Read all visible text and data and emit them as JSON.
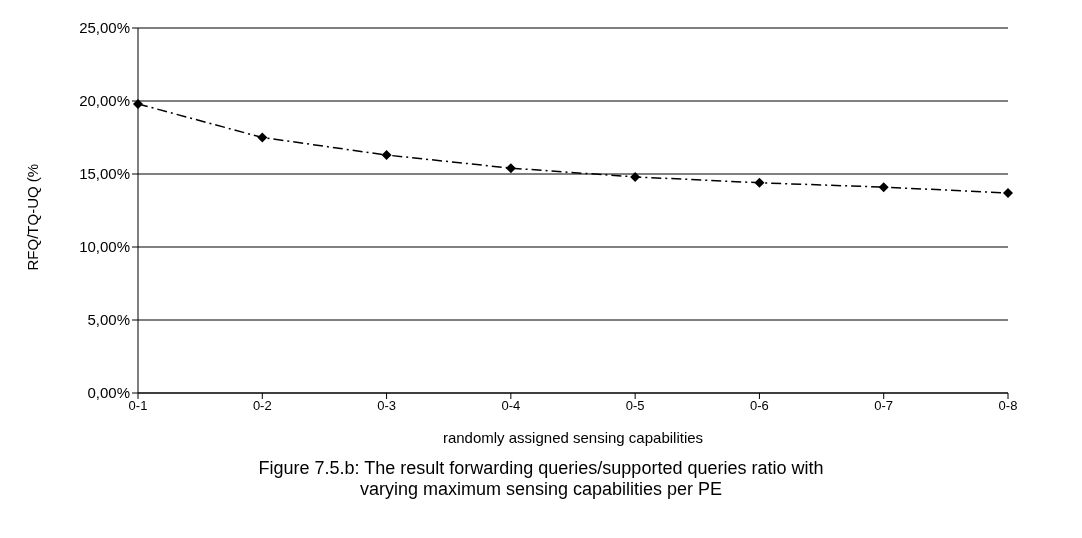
{
  "chart_data": {
    "type": "line",
    "xlabel": "randomly assigned sensing capabilities",
    "ylabel": "RFQ/TQ-UQ (%",
    "categories": [
      "0-1",
      "0-2",
      "0-3",
      "0-4",
      "0-5",
      "0-6",
      "0-7",
      "0-8"
    ],
    "series": [
      {
        "color": "#000000",
        "values": [
          19.8,
          17.5,
          16.3,
          15.4,
          14.8,
          14.4,
          14.1,
          13.7
        ]
      }
    ],
    "ylim": [
      0,
      25
    ],
    "yticks": [
      {
        "value": 0,
        "label": "0,00%"
      },
      {
        "value": 5,
        "label": "5,00%"
      },
      {
        "value": 10,
        "label": "10,00%"
      },
      {
        "value": 15,
        "label": "15,00%"
      },
      {
        "value": 20,
        "label": "20,00%"
      },
      {
        "value": 25,
        "label": "25,00%"
      }
    ],
    "grid": "y",
    "marker": "diamond",
    "line_style": "dashed",
    "legend": false,
    "annotations": [
      "Figure 7.5.b: The result forwarding queries/supported queries ratio with varying maximum sensing capabilities per PE"
    ]
  }
}
